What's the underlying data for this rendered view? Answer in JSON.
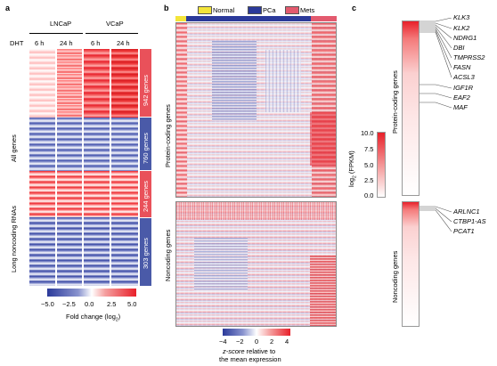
{
  "panels": {
    "a": {
      "label": "a",
      "group_lncap": "LNCaP",
      "group_vcap": "VCaP",
      "dht_label": "DHT",
      "time_labels": [
        "6 h",
        "24 h",
        "6 h",
        "24 h"
      ],
      "row_group_all": "All genes",
      "row_group_lnc": "Long noncoding RNAs",
      "counts": [
        "942 genes",
        "760 genes",
        "244 genes",
        "303 genes"
      ],
      "colorbar_ticks": [
        "−5.0",
        "−2.5",
        "0.0",
        "2.5",
        "5.0"
      ],
      "colorbar_title": "Fold change (log",
      "colorbar_title_sub": "2",
      "colorbar_title_end": ")",
      "colors": {
        "up": "#e8202a",
        "down": "#2b3a9a",
        "mid": "#ffffff",
        "up_band": "#e9515a",
        "down_band": "#4a5aa8"
      }
    },
    "b": {
      "label": "b",
      "legend": [
        {
          "name": "Normal",
          "color": "#f4e53a"
        },
        {
          "name": "PCa",
          "color": "#2b3a9a"
        },
        {
          "name": "Mets",
          "color": "#e35a6e"
        }
      ],
      "row_group_protein": "Protein-coding genes",
      "row_group_noncoding": "Noncoding genes",
      "colorbar_ticks": [
        "−4",
        "−2",
        "0",
        "2",
        "4"
      ],
      "colorbar_title_1": "z-score",
      "colorbar_title_2": " relative to",
      "colorbar_title_3": "the mean expression"
    },
    "c": {
      "label": "c",
      "protein_genes": [
        "KLK3",
        "KLK2",
        "NDRG1",
        "DBI",
        "TMPRSS2",
        "FASN",
        "ACSL3",
        "IGF1R",
        "EAF2",
        "MAF"
      ],
      "noncoding_genes": [
        "ARLNC1",
        "CTBP1-AS",
        "PCAT1"
      ],
      "row_group_protein": "Protein-coding genes",
      "row_group_noncoding": "Noncoding genes",
      "colorbar_ticks": [
        "10.0",
        "7.5",
        "5.0",
        "2.5",
        "0.0"
      ],
      "colorbar_title": "log",
      "colorbar_title_sub": "2",
      "colorbar_title_end": " (FPKM)"
    }
  }
}
